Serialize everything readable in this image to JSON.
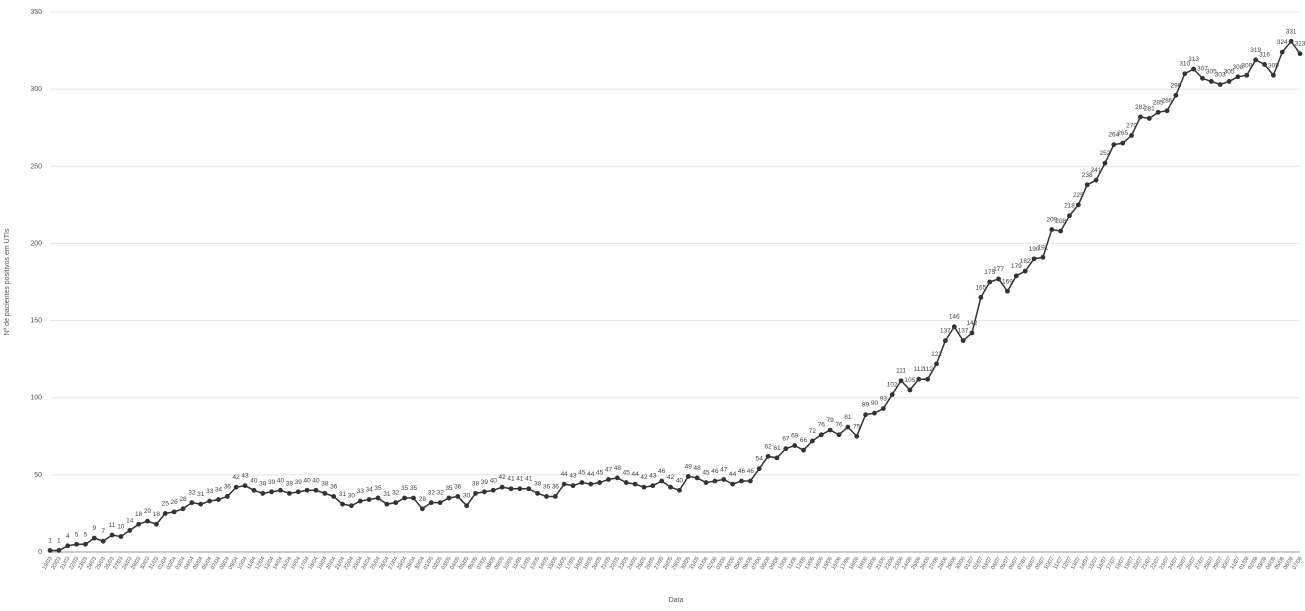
{
  "chart_data": {
    "type": "line",
    "y_label": "Nº de pacientes positivos em UTIs",
    "x_label": "Data",
    "categories": [
      "19/03",
      "20/03",
      "21/03",
      "22/03",
      "23/03",
      "24/03",
      "25/03",
      "26/03",
      "27/03",
      "28/03",
      "29/03",
      "30/03",
      "31/03",
      "01/04",
      "02/04",
      "03/04",
      "04/04",
      "05/04",
      "06/04",
      "07/04",
      "08/04",
      "09/04",
      "10/04",
      "11/04",
      "12/04",
      "13/04",
      "14/04",
      "15/04",
      "16/04",
      "17/04",
      "18/04",
      "19/04",
      "20/04",
      "21/04",
      "22/04",
      "23/04",
      "24/04",
      "25/04",
      "26/04",
      "27/04",
      "28/04",
      "29/04",
      "30/04",
      "01/05",
      "02/05",
      "03/05",
      "04/05",
      "05/05",
      "06/05",
      "07/05",
      "08/05",
      "09/05",
      "10/05",
      "11/05",
      "12/05",
      "13/05",
      "14/05",
      "15/05",
      "16/05",
      "17/05",
      "18/05",
      "19/05",
      "20/05",
      "21/05",
      "22/05",
      "23/05",
      "24/05",
      "25/05",
      "26/05",
      "27/05",
      "28/05",
      "29/05",
      "30/05",
      "31/05",
      "01/06",
      "02/06",
      "03/06",
      "04/06",
      "05/06",
      "06/06",
      "07/06",
      "08/06",
      "09/06",
      "10/06",
      "11/06",
      "12/06",
      "13/06",
      "14/06",
      "15/06",
      "16/06",
      "17/06",
      "18/06",
      "19/06",
      "20/06",
      "21/06",
      "22/06",
      "23/06",
      "24/06",
      "25/06",
      "26/06",
      "27/06",
      "28/06",
      "29/06",
      "30/06",
      "01/07",
      "02/07",
      "03/07",
      "04/07",
      "05/07",
      "06/07",
      "07/07",
      "08/07",
      "09/07",
      "10/07",
      "11/07",
      "12/07",
      "13/07",
      "14/07",
      "15/07",
      "16/07",
      "17/07",
      "18/07",
      "19/07",
      "20/07",
      "21/07",
      "22/07",
      "23/07",
      "24/07",
      "25/07",
      "26/07",
      "27/07",
      "28/07",
      "29/07",
      "30/07",
      "31/07",
      "01/08",
      "02/08",
      "03/08",
      "04/08",
      "05/08",
      "06/08",
      "07/08"
    ],
    "series": [
      {
        "color": "#333333",
        "values": [
          1,
          1,
          4,
          5,
          5,
          9,
          7,
          11,
          10,
          14,
          18,
          20,
          18,
          25,
          26,
          28,
          32,
          31,
          33,
          34,
          36,
          42,
          43,
          40,
          38,
          39,
          40,
          38,
          39,
          40,
          40,
          38,
          36,
          31,
          30,
          33,
          34,
          35,
          31,
          32,
          35,
          35,
          28,
          32,
          32,
          35,
          36,
          30,
          38,
          39,
          40,
          42,
          41,
          41,
          41,
          38,
          36,
          36,
          44,
          43,
          45,
          44,
          45,
          47,
          48,
          45,
          44,
          42,
          43,
          46,
          42,
          40,
          49,
          48,
          45,
          46,
          47,
          44,
          46,
          46,
          54,
          62,
          61,
          67,
          69,
          66,
          72,
          76,
          79,
          76,
          81,
          75,
          89,
          90,
          93,
          102,
          111,
          105,
          112,
          112,
          122,
          137,
          146,
          137,
          142,
          165,
          175,
          177,
          169,
          179,
          182,
          190,
          191,
          209,
          208,
          218,
          225,
          238,
          241,
          252,
          264,
          265,
          270,
          282,
          281,
          285,
          286,
          296,
          310,
          313,
          307,
          305,
          303,
          305,
          308,
          309,
          319,
          316,
          309,
          324,
          331,
          323
        ]
      }
    ],
    "ylim": [
      0,
      350
    ],
    "yticks": [
      0,
      50,
      100,
      150,
      200,
      250,
      300,
      350
    ],
    "grid": true
  }
}
